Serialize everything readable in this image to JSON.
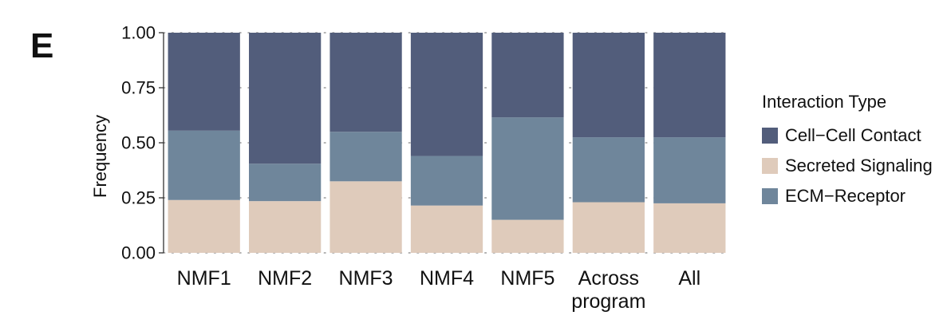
{
  "panel_label": "E",
  "chart_data": {
    "type": "bar",
    "stacked": true,
    "categories": [
      "NMF1",
      "NMF2",
      "NMF3",
      "NMF4",
      "NMF5",
      "Across\nprogram",
      "All"
    ],
    "series": [
      {
        "name": "Secreted Signaling",
        "color": "#dfcbbb",
        "values": [
          0.24,
          0.235,
          0.325,
          0.215,
          0.15,
          0.23,
          0.225
        ]
      },
      {
        "name": "ECM−Receptor",
        "color": "#6f869b",
        "values": [
          0.315,
          0.17,
          0.225,
          0.225,
          0.465,
          0.295,
          0.3
        ]
      },
      {
        "name": "Cell−Cell Contact",
        "color": "#525d7b",
        "values": [
          0.445,
          0.595,
          0.45,
          0.56,
          0.385,
          0.475,
          0.475
        ]
      }
    ],
    "ylabel": "Frequency",
    "xlabel": "",
    "ylim": [
      0,
      1
    ],
    "yticks": [
      0,
      0.25,
      0.5,
      0.75,
      1.0
    ],
    "ytick_labels": [
      "0.00",
      "0.25",
      "0.50",
      "0.75",
      "1.00"
    ],
    "grid": "dotted",
    "legend": {
      "title": "Interaction Type",
      "placement": "right",
      "entries": [
        {
          "label": "Cell−Cell Contact",
          "color": "#525d7b"
        },
        {
          "label": "Secreted Signaling",
          "color": "#dfcbbb"
        },
        {
          "label": "ECM−Receptor",
          "color": "#6f869b"
        }
      ]
    }
  }
}
